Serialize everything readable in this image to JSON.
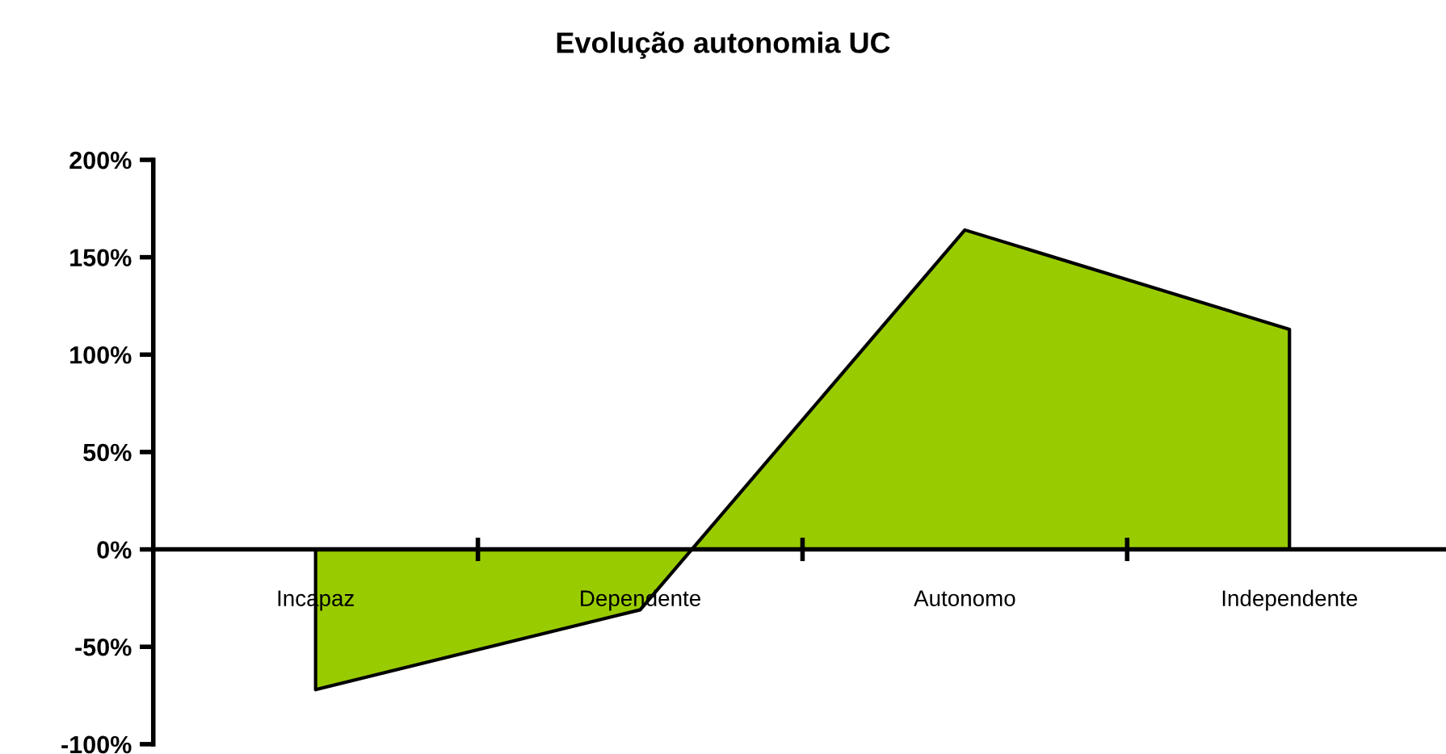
{
  "chart_data": {
    "type": "area",
    "title": "Evolução autonomia UC",
    "categories": [
      "Incapaz",
      "Dependente",
      "Autonomo",
      "Independente"
    ],
    "series": [
      {
        "color": "#99cc00",
        "values": [
          -72,
          -31,
          164,
          113
        ]
      }
    ],
    "ylim": [
      -100,
      200
    ],
    "yticks": [
      {
        "value": -100,
        "label": "-100%"
      },
      {
        "value": -50,
        "label": "-50%"
      },
      {
        "value": 0,
        "label": "0%"
      },
      {
        "value": 50,
        "label": "50%"
      },
      {
        "value": 100,
        "label": "100%"
      },
      {
        "value": 150,
        "label": "150%"
      },
      {
        "value": 200,
        "label": "200%"
      }
    ],
    "grid": false,
    "legend": false
  }
}
